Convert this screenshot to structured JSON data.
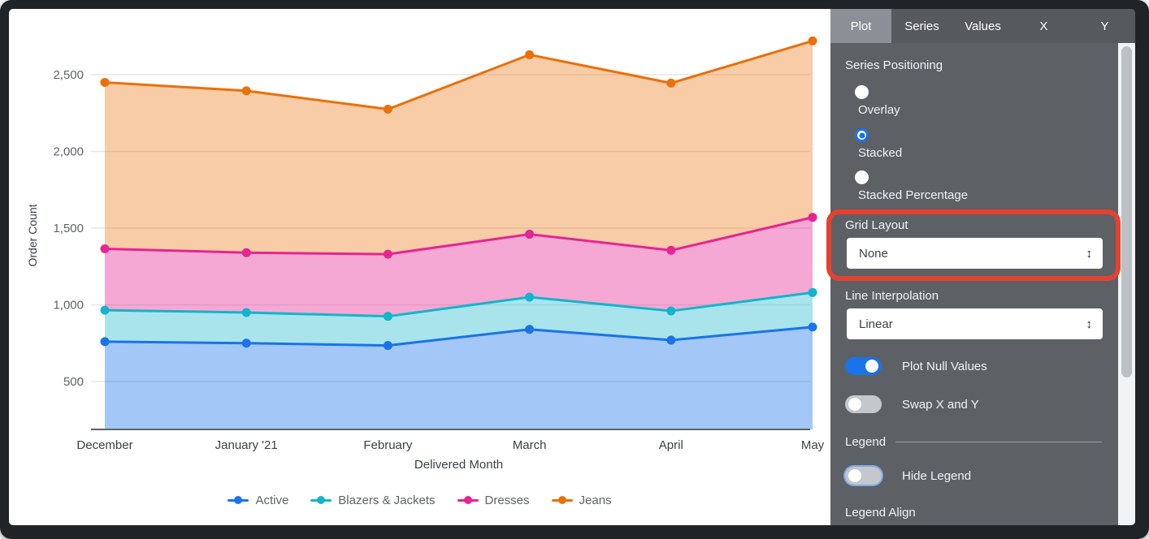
{
  "icons": {
    "select_arrows": "↕"
  },
  "chart_data": {
    "type": "area",
    "stacked": true,
    "categories": [
      "December",
      "January '21",
      "February",
      "March",
      "April",
      "May"
    ],
    "series": [
      {
        "name": "Active",
        "color": "#1a73e8",
        "fill": "rgba(26,115,232,0.40)",
        "values": [
          760,
          750,
          735,
          840,
          770,
          855
        ]
      },
      {
        "name": "Blazers & Jackets",
        "color": "#12b5cb",
        "fill": "rgba(18,181,203,0.36)",
        "values": [
          205,
          200,
          190,
          210,
          190,
          225
        ]
      },
      {
        "name": "Dresses",
        "color": "#e52592",
        "fill": "rgba(229,37,146,0.40)",
        "values": [
          400,
          390,
          405,
          410,
          395,
          490
        ]
      },
      {
        "name": "Jeans",
        "color": "#e8710a",
        "fill": "rgba(232,113,10,0.36)",
        "values": [
          1085,
          1055,
          945,
          1170,
          1090,
          1150
        ]
      }
    ],
    "stacked_totals": {
      "Active": [
        760,
        750,
        735,
        840,
        770,
        855
      ],
      "Blazers & Jackets": [
        965,
        950,
        925,
        1050,
        960,
        1080
      ],
      "Dresses": [
        1365,
        1340,
        1330,
        1460,
        1355,
        1570
      ],
      "Jeans": [
        2450,
        2395,
        2275,
        2630,
        2445,
        2720
      ]
    },
    "xlabel": "Delivered Month",
    "ylabel": "Order Count",
    "y_ticks": [
      500,
      1000,
      1500,
      2000,
      2500
    ],
    "y_tick_labels": [
      "500",
      "1,000",
      "1,500",
      "2,000",
      "2,500"
    ],
    "grid": true,
    "legend_position": "bottom"
  },
  "panel": {
    "tabs": [
      {
        "label": "Plot",
        "selected": true
      },
      {
        "label": "Series",
        "selected": false
      },
      {
        "label": "Values",
        "selected": false
      },
      {
        "label": "X",
        "selected": false
      },
      {
        "label": "Y",
        "selected": false
      }
    ],
    "series_positioning": {
      "label": "Series Positioning",
      "options": [
        {
          "label": "Overlay",
          "selected": false
        },
        {
          "label": "Stacked",
          "selected": true
        },
        {
          "label": "Stacked Percentage",
          "selected": false
        }
      ]
    },
    "grid_layout": {
      "label": "Grid Layout",
      "value": "None"
    },
    "line_interpolation": {
      "label": "Line Interpolation",
      "value": "Linear"
    },
    "plot_null_values": {
      "label": "Plot Null Values",
      "on": true
    },
    "swap_x_y": {
      "label": "Swap X and Y",
      "on": false
    },
    "legend": {
      "header": "Legend",
      "hide_legend_label": "Hide Legend",
      "hide_legend_on": false,
      "legend_align_label": "Legend Align"
    }
  },
  "annotation": {
    "type": "highlight-box",
    "target": "grid-layout",
    "color": "#e8402f"
  }
}
